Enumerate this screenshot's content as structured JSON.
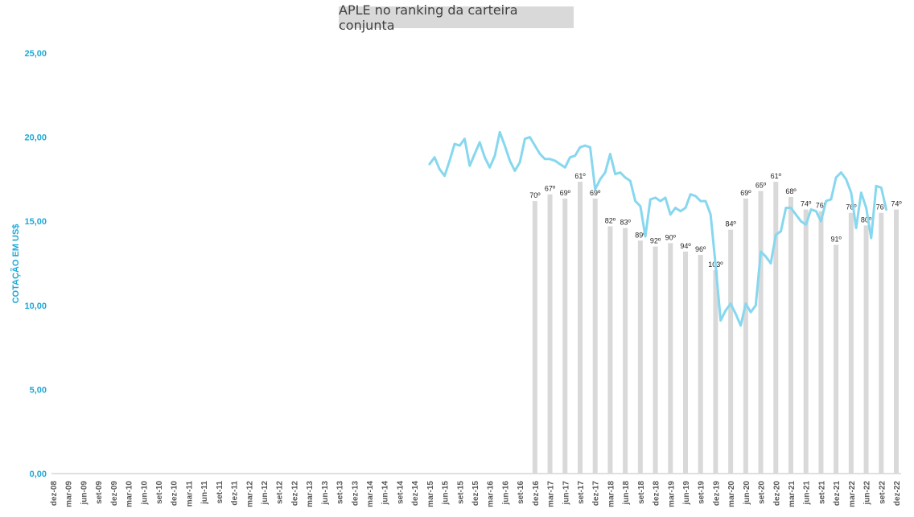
{
  "chart_data": {
    "type": "bar+line",
    "title": "APLE no ranking da carteira conjunta",
    "ylabel": "COTAÇÃO EM US$",
    "ylim": [
      0,
      25
    ],
    "yticks": [
      "0,00",
      "5,00",
      "10,00",
      "15,00",
      "20,00",
      "25,00"
    ],
    "xticks": [
      "dez-08",
      "mar-09",
      "jun-09",
      "set-09",
      "dez-09",
      "mar-10",
      "jun-10",
      "set-10",
      "dez-10",
      "mar-11",
      "jun-11",
      "set-11",
      "dez-11",
      "mar-12",
      "jun-12",
      "set-12",
      "dez-12",
      "mar-13",
      "jun-13",
      "set-13",
      "dez-13",
      "mar-14",
      "jun-14",
      "set-14",
      "dez-14",
      "mar-15",
      "jun-15",
      "set-15",
      "dez-15",
      "mar-16",
      "jun-16",
      "set-16",
      "dez-16",
      "mar-17",
      "jun-17",
      "set-17",
      "dez-17",
      "mar-18",
      "jun-18",
      "set-18",
      "dez-18",
      "mar-19",
      "jun-19",
      "set-19",
      "dez-19",
      "mar-20",
      "jun-20",
      "set-20",
      "dez-20",
      "mar-21",
      "jun-21",
      "set-21",
      "dez-21",
      "mar-22",
      "jun-22",
      "set-22",
      "dez-22"
    ],
    "ranking_bars": {
      "name": "Ranking",
      "quarters": [
        "dez-16",
        "mar-17",
        "jun-17",
        "set-17",
        "dez-17",
        "mar-18",
        "jun-18",
        "set-18",
        "dez-18",
        "mar-19",
        "jun-19",
        "set-19",
        "dez-19",
        "mar-20",
        "jun-20",
        "set-20",
        "dez-20",
        "mar-21",
        "jun-21",
        "set-21",
        "dez-21",
        "mar-22",
        "jun-22",
        "set-22",
        "dez-22"
      ],
      "heights": [
        16.2,
        16.6,
        16.35,
        17.35,
        16.35,
        14.7,
        14.6,
        13.85,
        13.5,
        13.7,
        13.2,
        13.0,
        12.1,
        14.5,
        16.35,
        16.8,
        17.35,
        16.45,
        15.7,
        15.6,
        13.6,
        15.5,
        14.75,
        15.5,
        15.7
      ],
      "labels": [
        "70º",
        "67º",
        "69º",
        "61º",
        "69º",
        "82º",
        "83º",
        "89º",
        "92º",
        "90º",
        "94º",
        "96º",
        "103º",
        "84º",
        "69º",
        "65º",
        "61º",
        "68º",
        "74º",
        "76º",
        "91º",
        "76º",
        "80º",
        "76º",
        "74º"
      ]
    },
    "price_line": {
      "name": "Cotação",
      "color": "#87d7ef",
      "points": [
        [
          "mar-15",
          18.4
        ],
        [
          "abr-15",
          18.8
        ],
        [
          "mai-15",
          18.1
        ],
        [
          "jun-15",
          17.7
        ],
        [
          "jul-15",
          18.6
        ],
        [
          "ago-15",
          19.6
        ],
        [
          "set-15",
          19.5
        ],
        [
          "out-15",
          19.9
        ],
        [
          "nov-15",
          18.3
        ],
        [
          "dez-15",
          19.0
        ],
        [
          "jan-16",
          19.7
        ],
        [
          "fev-16",
          18.8
        ],
        [
          "mar-16",
          18.2
        ],
        [
          "abr-16",
          18.9
        ],
        [
          "mai-16",
          20.3
        ],
        [
          "jun-16",
          19.5
        ],
        [
          "jul-16",
          18.6
        ],
        [
          "ago-16",
          18.0
        ],
        [
          "set-16",
          18.5
        ],
        [
          "out-16",
          19.9
        ],
        [
          "nov-16",
          20.0
        ],
        [
          "dez-16",
          19.5
        ],
        [
          "jan-17",
          19.0
        ],
        [
          "fev-17",
          18.7
        ],
        [
          "mar-17",
          18.7
        ],
        [
          "abr-17",
          18.6
        ],
        [
          "mai-17",
          18.4
        ],
        [
          "jun-17",
          18.2
        ],
        [
          "jul-17",
          18.8
        ],
        [
          "ago-17",
          18.9
        ],
        [
          "set-17",
          19.4
        ],
        [
          "out-17",
          19.5
        ],
        [
          "nov-17",
          19.4
        ],
        [
          "dez-17",
          16.9
        ],
        [
          "jan-18",
          17.5
        ],
        [
          "fev-18",
          17.9
        ],
        [
          "mar-18",
          19.0
        ],
        [
          "abr-18",
          17.8
        ],
        [
          "mai-18",
          17.9
        ],
        [
          "jun-18",
          17.6
        ],
        [
          "jul-18",
          17.4
        ],
        [
          "ago-18",
          16.2
        ],
        [
          "set-18",
          15.9
        ],
        [
          "out-18",
          14.1
        ],
        [
          "nov-18",
          16.3
        ],
        [
          "dez-18",
          16.4
        ],
        [
          "jan-19",
          16.2
        ],
        [
          "fev-19",
          16.4
        ],
        [
          "mar-19",
          15.4
        ],
        [
          "abr-19",
          15.8
        ],
        [
          "mai-19",
          15.6
        ],
        [
          "jun-19",
          15.8
        ],
        [
          "jul-19",
          16.6
        ],
        [
          "ago-19",
          16.5
        ],
        [
          "set-19",
          16.2
        ],
        [
          "out-19",
          16.2
        ],
        [
          "nov-19",
          15.4
        ],
        [
          "dez-19",
          12.4
        ],
        [
          "jan-20",
          9.1
        ],
        [
          "fev-20",
          9.7
        ],
        [
          "mar-20",
          10.1
        ],
        [
          "abr-20",
          9.5
        ],
        [
          "mai-20",
          8.8
        ],
        [
          "jun-20",
          10.1
        ],
        [
          "jul-20",
          9.6
        ],
        [
          "ago-20",
          10.0
        ],
        [
          "set-20",
          13.2
        ],
        [
          "out-20",
          12.9
        ],
        [
          "nov-20",
          12.5
        ],
        [
          "dez-20",
          14.2
        ],
        [
          "jan-21",
          14.4
        ],
        [
          "fev-21",
          15.8
        ],
        [
          "mar-21",
          15.8
        ],
        [
          "abr-21",
          15.4
        ],
        [
          "mai-21",
          15.0
        ],
        [
          "jun-21",
          14.8
        ],
        [
          "jul-21",
          15.7
        ],
        [
          "ago-21",
          15.6
        ],
        [
          "set-21",
          15.0
        ],
        [
          "out-21",
          16.2
        ],
        [
          "nov-21",
          16.3
        ],
        [
          "dez-21",
          17.6
        ],
        [
          "jan-22",
          17.9
        ],
        [
          "fev-22",
          17.5
        ],
        [
          "mar-22",
          16.7
        ],
        [
          "abr-22",
          14.6
        ],
        [
          "mai-22",
          16.7
        ],
        [
          "jun-22",
          15.8
        ],
        [
          "jul-22",
          14.0
        ],
        [
          "ago-22",
          17.1
        ],
        [
          "set-22",
          17.0
        ],
        [
          "out-22",
          15.7
        ]
      ]
    },
    "colors": {
      "bars": "#d9d9d9",
      "line": "#87d7ef",
      "yaxis_text": "#1fa8d6",
      "xaxis_text": "#595959",
      "bar_label": "#262626"
    },
    "grid": false
  }
}
